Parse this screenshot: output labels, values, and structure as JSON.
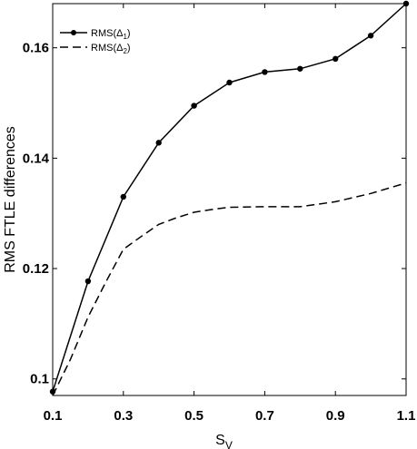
{
  "chart_data": {
    "type": "line",
    "xlabel": "S",
    "xlabel_subscript": "V",
    "ylabel": "RMS FTLE differences",
    "xlim": [
      0.1,
      1.1
    ],
    "ylim": [
      0.097,
      0.168
    ],
    "xticks": [
      "0.1",
      "0.3",
      "0.5",
      "0.7",
      "0.9",
      "1.1"
    ],
    "yticks": [
      "0.1",
      "0.12",
      "0.14",
      "0.16"
    ],
    "grid": false,
    "legend_position": "top-left",
    "series": [
      {
        "name": "RMS(Δ1)",
        "name_base": "RMS(Δ",
        "name_sub": "1",
        "name_tail": ")",
        "style": "solid-markers",
        "x": [
          0.1,
          0.2,
          0.3,
          0.4,
          0.5,
          0.6,
          0.7,
          0.8,
          0.9,
          1.0,
          1.1
        ],
        "y": [
          0.0977,
          0.1177,
          0.133,
          0.1428,
          0.1495,
          0.1537,
          0.1556,
          0.1562,
          0.158,
          0.1622,
          0.168
        ]
      },
      {
        "name": "RMS(Δ2)",
        "name_base": "RMS(Δ",
        "name_sub": "2",
        "name_tail": ")",
        "style": "dashed",
        "x": [
          0.1,
          0.15,
          0.2,
          0.25,
          0.3,
          0.35,
          0.4,
          0.45,
          0.5,
          0.55,
          0.6,
          0.7,
          0.8,
          0.9,
          1.0,
          1.1
        ],
        "y": [
          0.097,
          0.1035,
          0.1112,
          0.1175,
          0.1235,
          0.1258,
          0.128,
          0.1292,
          0.1302,
          0.1307,
          0.1311,
          0.1312,
          0.1312,
          0.1321,
          0.1336,
          0.1355
        ]
      }
    ],
    "colors": {
      "line": "#000000",
      "background": "#ffffff"
    }
  }
}
